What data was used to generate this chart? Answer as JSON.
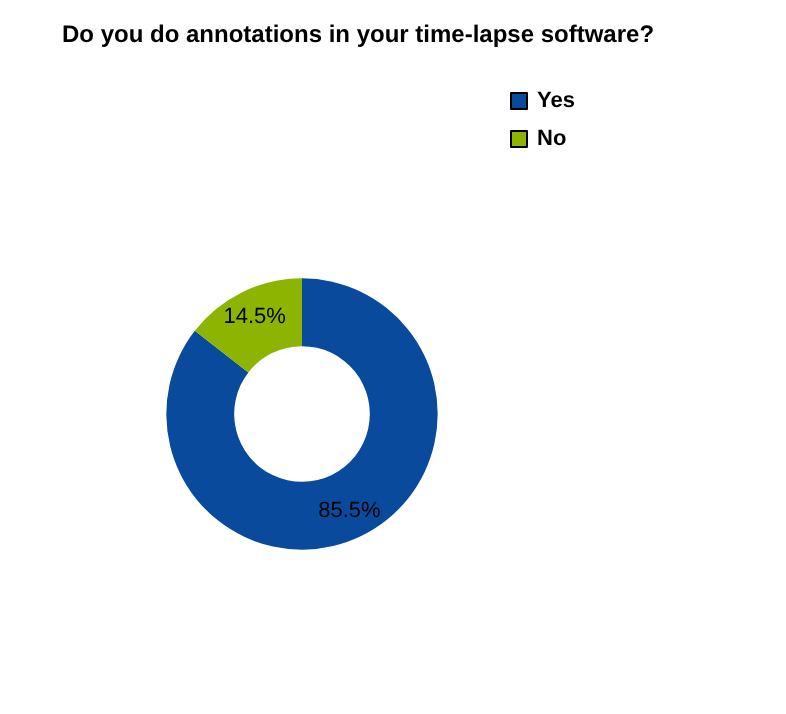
{
  "chart_data": {
    "type": "donut",
    "title": "Do you do annotations in your time-lapse software?",
    "categories": [
      "Yes",
      "No"
    ],
    "values": [
      85.5,
      14.5
    ],
    "colors": [
      "#0a4a9c",
      "#8cb400"
    ],
    "value_labels": [
      "85.5%",
      "14.5%"
    ],
    "legend": "top right"
  }
}
